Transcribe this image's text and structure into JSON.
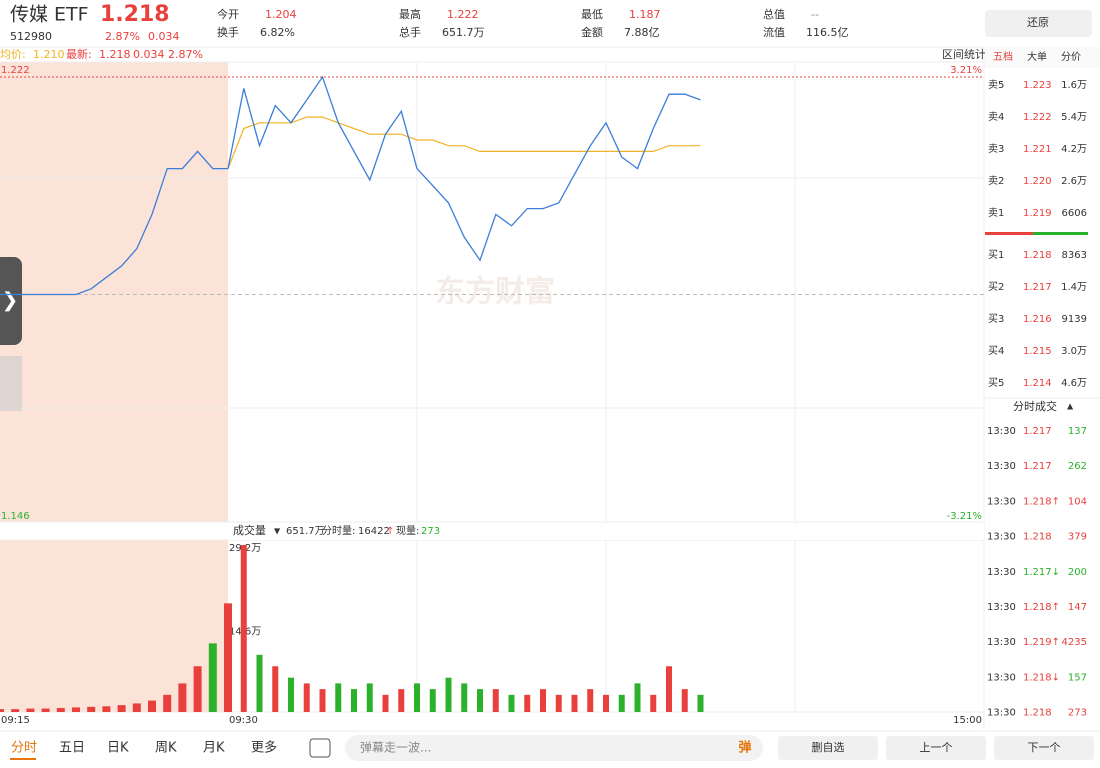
{
  "header": {
    "name": "传媒 ETF",
    "price": "1.218",
    "code": "512980",
    "change_pct": "2.87%",
    "change": "0.034",
    "stats": [
      {
        "label": "今开",
        "value": "1.204"
      },
      {
        "label": "最高",
        "value": "1.222"
      },
      {
        "label": "最低",
        "value": "1.187"
      },
      {
        "label": "总值",
        "value": "--"
      },
      {
        "label": "换手",
        "value": "6.82%"
      },
      {
        "label": "总手",
        "value": "651.7万"
      },
      {
        "label": "金额",
        "value": "7.88亿"
      },
      {
        "label": "流值",
        "value": "116.5亿"
      }
    ],
    "restore": "还原"
  },
  "legend": {
    "avg_label": "均价:",
    "avg": "1.210",
    "last_label": "最新:",
    "last": "1.218",
    "change": "0.034",
    "change_pct": "2.87%",
    "range_stats": "区间统计"
  },
  "watermark": "东方财富",
  "chart_data": {
    "type": "line",
    "ylim": [
      1.146,
      1.222
    ],
    "yticks": [
      1.222,
      1.146
    ],
    "y2lim": [
      -3.21,
      3.21
    ],
    "y2ticks": [
      {
        "value": 3.21,
        "label": "3.21%"
      },
      {
        "value": -3.21,
        "label": "-3.21%"
      }
    ],
    "xticks": [
      "09:15",
      "09:30",
      "15:00"
    ],
    "premarket_x": [
      "09:15",
      "09:16",
      "09:17",
      "09:18",
      "09:19",
      "09:20",
      "09:21",
      "09:22",
      "09:23",
      "09:24",
      "09:25",
      "09:26",
      "09:27",
      "09:28",
      "09:29",
      "09:30"
    ],
    "premarket_price": [
      1.184,
      1.184,
      1.184,
      1.184,
      1.184,
      1.184,
      1.185,
      1.187,
      1.189,
      1.192,
      1.198,
      1.206,
      1.206,
      1.209,
      1.206,
      1.206
    ],
    "premarket_volume": [
      0.5,
      0.5,
      0.6,
      0.6,
      0.7,
      0.8,
      0.9,
      1,
      1.2,
      1.5,
      2,
      3,
      5,
      8,
      12,
      19
    ],
    "x": [
      "09:30",
      "09:35",
      "09:40",
      "09:45",
      "09:50",
      "09:55",
      "10:00",
      "10:05",
      "10:10",
      "10:15",
      "10:20",
      "10:25",
      "10:30",
      "10:35",
      "10:40",
      "10:45",
      "10:50",
      "10:55",
      "11:00",
      "11:05",
      "11:10",
      "11:15",
      "11:20",
      "11:25",
      "11:30",
      "13:05",
      "13:10",
      "13:15",
      "13:20",
      "13:25",
      "13:30"
    ],
    "price": [
      1.206,
      1.22,
      1.21,
      1.217,
      1.214,
      1.218,
      1.222,
      1.214,
      1.209,
      1.204,
      1.212,
      1.216,
      1.206,
      1.203,
      1.2,
      1.194,
      1.19,
      1.198,
      1.196,
      1.199,
      1.199,
      1.2,
      1.205,
      1.21,
      1.214,
      1.208,
      1.206,
      1.213,
      1.219,
      1.219,
      1.218
    ],
    "avg_price": [
      1.206,
      1.213,
      1.214,
      1.214,
      1.214,
      1.215,
      1.215,
      1.214,
      1.213,
      1.212,
      1.212,
      1.212,
      1.211,
      1.211,
      1.21,
      1.21,
      1.209,
      1.209,
      1.209,
      1.209,
      1.209,
      1.209,
      1.209,
      1.209,
      1.209,
      1.209,
      1.209,
      1.209,
      1.21,
      1.21,
      1.21
    ],
    "volume": [
      18,
      29.2,
      10,
      8,
      6,
      5,
      4,
      5,
      4,
      5,
      3,
      4,
      5,
      4,
      6,
      5,
      4,
      4,
      3,
      3,
      4,
      3,
      3,
      4,
      3,
      3,
      5,
      3,
      8,
      4,
      3
    ],
    "price_color": "#3b7dd8",
    "avg_color": "#f0b323",
    "up_color": "#e8403c",
    "down_color": "#2bb12b",
    "volume_ylim": [
      0,
      29.2
    ],
    "volume_ticks": [
      {
        "value": 29.2,
        "label": "29.2万"
      },
      {
        "value": 14.6,
        "label": "14.6万"
      }
    ],
    "volume_header": {
      "label": "成交量",
      "total": "651.7万",
      "minute_label": "分时量:",
      "minute": "16422",
      "now_label": "现量:",
      "now": "273"
    }
  },
  "tabs": [
    "五档",
    "大单",
    "分价"
  ],
  "asks": [
    {
      "label": "卖5",
      "price": "1.223",
      "vol": "1.6万"
    },
    {
      "label": "卖4",
      "price": "1.222",
      "vol": "5.4万"
    },
    {
      "label": "卖3",
      "price": "1.221",
      "vol": "4.2万"
    },
    {
      "label": "卖2",
      "price": "1.220",
      "vol": "2.6万"
    },
    {
      "label": "卖1",
      "price": "1.219",
      "vol": "6606"
    }
  ],
  "bids": [
    {
      "label": "买1",
      "price": "1.218",
      "vol": "8363"
    },
    {
      "label": "买2",
      "price": "1.217",
      "vol": "1.4万"
    },
    {
      "label": "买3",
      "price": "1.216",
      "vol": "9139"
    },
    {
      "label": "买4",
      "price": "1.215",
      "vol": "3.0万"
    },
    {
      "label": "买5",
      "price": "1.214",
      "vol": "4.6万"
    }
  ],
  "trades_title": "分时成交",
  "trades": [
    {
      "time": "13:30",
      "price": "1.217",
      "vol": "137",
      "price_color": "#e8403c",
      "vol_color": "#2bb12b"
    },
    {
      "time": "13:30",
      "price": "1.217",
      "vol": "262",
      "price_color": "#e8403c",
      "vol_color": "#2bb12b"
    },
    {
      "time": "13:30",
      "price": "1.218↑",
      "vol": "104",
      "price_color": "#e8403c",
      "vol_color": "#e8403c"
    },
    {
      "time": "13:30",
      "price": "1.218",
      "vol": "379",
      "price_color": "#e8403c",
      "vol_color": "#e8403c"
    },
    {
      "time": "13:30",
      "price": "1.217↓",
      "vol": "200",
      "price_color": "#2bb12b",
      "vol_color": "#2bb12b"
    },
    {
      "time": "13:30",
      "price": "1.218↑",
      "vol": "147",
      "price_color": "#e8403c",
      "vol_color": "#e8403c"
    },
    {
      "time": "13:30",
      "price": "1.219↑",
      "vol": "4235",
      "price_color": "#e8403c",
      "vol_color": "#e8403c"
    },
    {
      "time": "13:30",
      "price": "1.218↓",
      "vol": "157",
      "price_color": "#e8403c",
      "vol_color": "#2bb12b"
    },
    {
      "time": "13:30",
      "price": "1.218",
      "vol": "273",
      "price_color": "#e8403c",
      "vol_color": "#e8403c"
    }
  ],
  "bottom": {
    "periods": [
      "分时",
      "五日",
      "日K",
      "周K",
      "月K",
      "更多"
    ],
    "danmaku": "弹幕走一波...",
    "danmaku_icon": "弹",
    "buttons": [
      "删自选",
      "上一个",
      "下一个"
    ]
  }
}
